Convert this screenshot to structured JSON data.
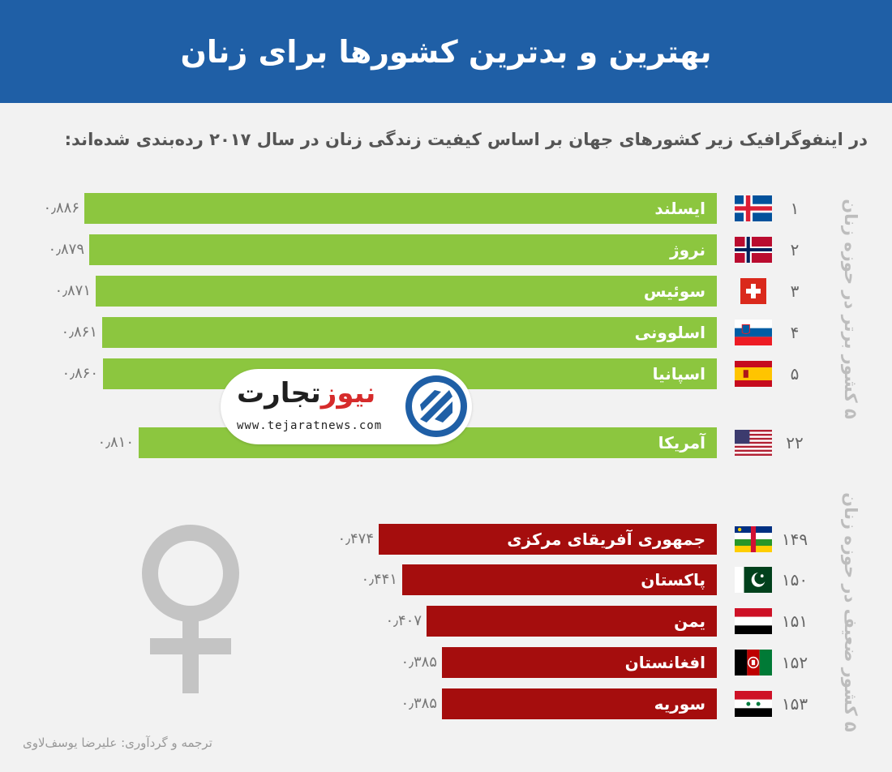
{
  "header": {
    "title": "بهترین و بدترین کشورها برای زنان"
  },
  "subtitle": "در اینفوگرافیک زیر کشورهای جهان بر اساس کیفیت زندگی زنان در سال ۲۰۱۷ رده‌بندی شده‌اند:",
  "side_labels": {
    "top": "۵ کشور برتر در حوزه زنان",
    "bottom": "۵ کشور ضعیف در حوزه زنان"
  },
  "logo": {
    "name_part1": "تجارت",
    "name_part2": "نیوز",
    "url": "www.tejaratnews.com"
  },
  "credit": "ترجمه و گردآوری: علیرضا یوسف‌لاوی",
  "colors": {
    "top_bar": "#8cc63f",
    "bottom_bar": "#a50d0d",
    "header": "#1f5fa6"
  },
  "chart_data": {
    "type": "bar",
    "orientation": "horizontal",
    "top": [
      {
        "rank": "۱",
        "country": "ایسلند",
        "value": 0.886,
        "value_label": "۰٫۸۸۶",
        "flag": "iceland-flag"
      },
      {
        "rank": "۲",
        "country": "نروژ",
        "value": 0.879,
        "value_label": "۰٫۸۷۹",
        "flag": "norway-flag"
      },
      {
        "rank": "۳",
        "country": "سوئیس",
        "value": 0.871,
        "value_label": "۰٫۸۷۱",
        "flag": "switzerland-flag"
      },
      {
        "rank": "۴",
        "country": "اسلوونی",
        "value": 0.861,
        "value_label": "۰٫۸۶۱",
        "flag": "slovenia-flag"
      },
      {
        "rank": "۵",
        "country": "اسپانیا",
        "value": 0.86,
        "value_label": "۰٫۸۶۰",
        "flag": "spain-flag"
      }
    ],
    "extra": [
      {
        "rank": "۲۲",
        "country": "آمریکا",
        "value": 0.81,
        "value_label": "۰٫۸۱۰",
        "flag": "usa-flag"
      }
    ],
    "bottom": [
      {
        "rank": "۱۴۹",
        "country": "جمهوری آفریقای مرکزی",
        "value": 0.474,
        "value_label": "۰٫۴۷۴",
        "flag": "car-flag"
      },
      {
        "rank": "۱۵۰",
        "country": "پاکستان",
        "value": 0.441,
        "value_label": "۰٫۴۴۱",
        "flag": "pakistan-flag"
      },
      {
        "rank": "۱۵۱",
        "country": "یمن",
        "value": 0.407,
        "value_label": "۰٫۴۰۷",
        "flag": "yemen-flag"
      },
      {
        "rank": "۱۵۲",
        "country": "افغانستان",
        "value": 0.385,
        "value_label": "۰٫۳۸۵",
        "flag": "afghanistan-flag"
      },
      {
        "rank": "۱۵۳",
        "country": "سوریه",
        "value": 0.385,
        "value_label": "۰٫۳۸۵",
        "flag": "syria-flag"
      }
    ]
  }
}
